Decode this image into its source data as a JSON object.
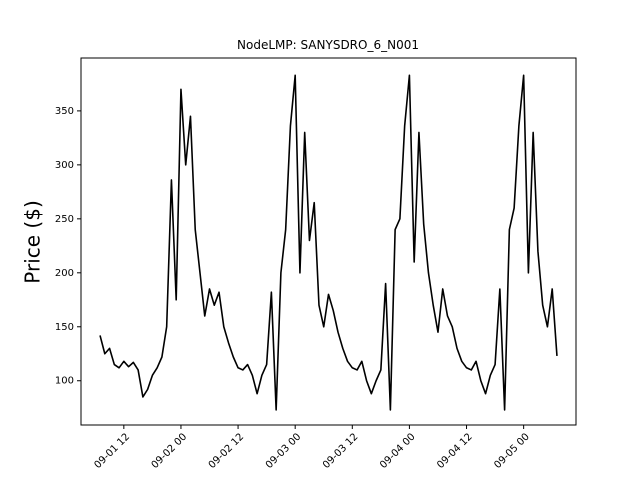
{
  "chart_data": {
    "type": "line",
    "title": "NodeLMP: SANYSDRO_6_N001",
    "y_label": "Price ($)",
    "x": [
      "09-01 07",
      "09-01 08",
      "09-01 09",
      "09-01 10",
      "09-01 11",
      "09-01 12",
      "09-01 13",
      "09-01 14",
      "09-01 15",
      "09-01 16",
      "09-01 17",
      "09-01 18",
      "09-01 19",
      "09-01 20",
      "09-01 21",
      "09-01 22",
      "09-01 23",
      "09-02 00",
      "09-02 01",
      "09-02 02",
      "09-02 03",
      "09-02 04",
      "09-02 05",
      "09-02 06",
      "09-02 07",
      "09-02 08",
      "09-02 09",
      "09-02 10",
      "09-02 11",
      "09-02 12",
      "09-02 13",
      "09-02 14",
      "09-02 15",
      "09-02 16",
      "09-02 17",
      "09-02 18",
      "09-02 19",
      "09-02 20",
      "09-02 21",
      "09-02 22",
      "09-02 23",
      "09-03 00",
      "09-03 01",
      "09-03 02",
      "09-03 03",
      "09-03 04",
      "09-03 05",
      "09-03 06",
      "09-03 07",
      "09-03 08",
      "09-03 09",
      "09-03 10",
      "09-03 11",
      "09-03 12",
      "09-03 13",
      "09-03 14",
      "09-03 15",
      "09-03 16",
      "09-03 17",
      "09-03 18",
      "09-03 19",
      "09-03 20",
      "09-03 21",
      "09-03 22",
      "09-03 23",
      "09-04 00",
      "09-04 01",
      "09-04 02",
      "09-04 03",
      "09-04 04",
      "09-04 05",
      "09-04 06",
      "09-04 07",
      "09-04 08",
      "09-04 09",
      "09-04 10",
      "09-04 11",
      "09-04 12",
      "09-04 13",
      "09-04 14",
      "09-04 15",
      "09-04 16",
      "09-04 17",
      "09-04 18",
      "09-04 19",
      "09-04 20",
      "09-04 21",
      "09-04 22",
      "09-04 23",
      "09-05 00",
      "09-05 01",
      "09-05 02",
      "09-05 03",
      "09-05 04",
      "09-05 05",
      "09-05 06",
      "09-05 07"
    ],
    "series": [
      {
        "color": "#000000",
        "values": [
          142,
          125,
          130,
          115,
          112,
          118,
          113,
          117,
          110,
          85,
          92,
          105,
          112,
          122,
          150,
          286,
          175,
          370,
          300,
          345,
          240,
          200,
          160,
          185,
          170,
          182,
          150,
          135,
          122,
          112,
          110,
          115,
          105,
          88,
          105,
          115,
          182,
          73,
          200,
          240,
          336,
          383,
          200,
          330,
          230,
          265,
          170,
          150,
          180,
          165,
          145,
          130,
          118,
          112,
          110,
          118,
          100,
          88,
          100,
          110,
          190,
          73,
          240,
          250,
          336,
          383,
          210,
          330,
          245,
          200,
          170,
          145,
          185,
          160,
          150,
          130,
          118,
          112,
          110,
          118,
          100,
          88,
          105,
          115,
          185,
          73,
          240,
          260,
          336,
          383,
          200,
          330,
          220,
          170,
          150,
          185,
          123
        ]
      }
    ],
    "xlim": [
      "09-01 03",
      "09-05 11"
    ],
    "xticks": [
      "09-01 12",
      "09-02 00",
      "09-02 12",
      "09-03 00",
      "09-03 12",
      "09-04 00",
      "09-04 12",
      "09-05 00"
    ],
    "ylim": [
      59,
      399
    ],
    "yticks": [
      100,
      150,
      200,
      250,
      300,
      350
    ]
  }
}
